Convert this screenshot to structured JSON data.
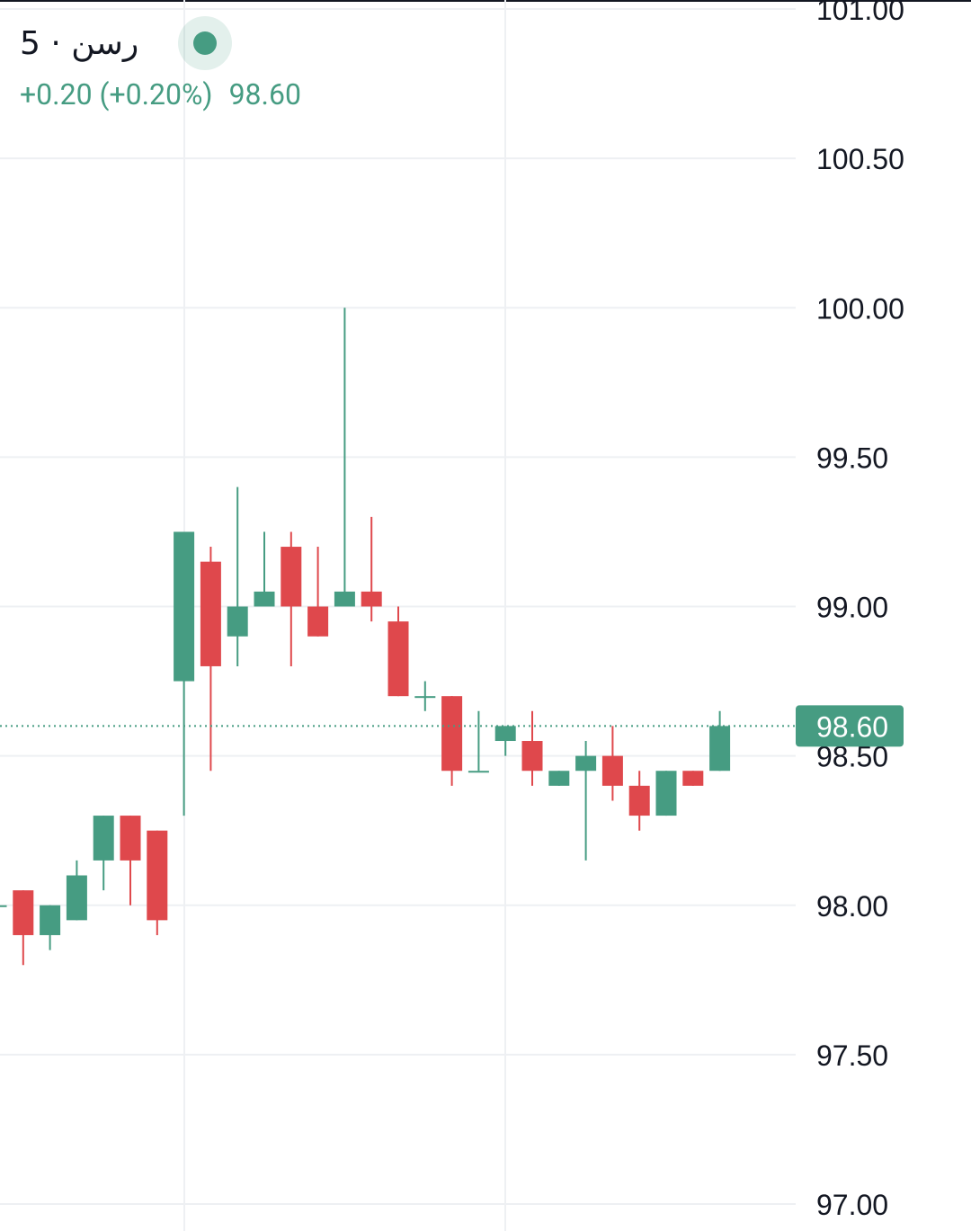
{
  "legend": {
    "symbol": "رسن",
    "separator": "·",
    "interval": "5",
    "change": "+0.20 (+0.20%)",
    "last_price": "98.60"
  },
  "colors": {
    "up": "#469c82",
    "down": "#df484c",
    "grid": "#eef0f3",
    "text": "#131722",
    "price_line": "#469c82"
  },
  "chart_data": {
    "type": "candlestick",
    "ylim": [
      97.0,
      101.0
    ],
    "y_ticks": [
      "97.00",
      "97.50",
      "98.00",
      "98.50",
      "99.00",
      "99.50",
      "100.00",
      "100.50",
      "101.00"
    ],
    "current_price": 98.6,
    "current_price_label": "98.60",
    "candles": [
      {
        "o": 98.0,
        "h": 98.0,
        "l": 98.0,
        "c": 98.0
      },
      {
        "o": 98.05,
        "h": 98.05,
        "l": 97.8,
        "c": 97.9
      },
      {
        "o": 97.9,
        "h": 98.0,
        "l": 97.85,
        "c": 98.0
      },
      {
        "o": 97.95,
        "h": 98.15,
        "l": 97.95,
        "c": 98.1
      },
      {
        "o": 98.15,
        "h": 98.3,
        "l": 98.05,
        "c": 98.3
      },
      {
        "o": 98.3,
        "h": 98.3,
        "l": 98.0,
        "c": 98.15
      },
      {
        "o": 98.25,
        "h": 98.25,
        "l": 97.9,
        "c": 97.95
      },
      {
        "o": 98.75,
        "h": 99.25,
        "l": 98.3,
        "c": 99.25
      },
      {
        "o": 99.15,
        "h": 99.2,
        "l": 98.45,
        "c": 98.8
      },
      {
        "o": 98.9,
        "h": 99.4,
        "l": 98.8,
        "c": 99.0
      },
      {
        "o": 99.0,
        "h": 99.25,
        "l": 99.0,
        "c": 99.05
      },
      {
        "o": 99.2,
        "h": 99.25,
        "l": 98.8,
        "c": 99.0
      },
      {
        "o": 99.0,
        "h": 99.2,
        "l": 98.9,
        "c": 98.9
      },
      {
        "o": 99.0,
        "h": 100.0,
        "l": 99.0,
        "c": 99.05
      },
      {
        "o": 99.05,
        "h": 99.3,
        "l": 98.95,
        "c": 99.0
      },
      {
        "o": 98.95,
        "h": 99.0,
        "l": 98.7,
        "c": 98.7
      },
      {
        "o": 98.7,
        "h": 98.75,
        "l": 98.65,
        "c": 98.7
      },
      {
        "o": 98.7,
        "h": 98.7,
        "l": 98.4,
        "c": 98.45
      },
      {
        "o": 98.45,
        "h": 98.65,
        "l": 98.45,
        "c": 98.45
      },
      {
        "o": 98.55,
        "h": 98.6,
        "l": 98.5,
        "c": 98.6
      },
      {
        "o": 98.55,
        "h": 98.65,
        "l": 98.4,
        "c": 98.45
      },
      {
        "o": 98.4,
        "h": 98.45,
        "l": 98.4,
        "c": 98.45
      },
      {
        "o": 98.45,
        "h": 98.55,
        "l": 98.15,
        "c": 98.5
      },
      {
        "o": 98.5,
        "h": 98.6,
        "l": 98.35,
        "c": 98.4
      },
      {
        "o": 98.4,
        "h": 98.45,
        "l": 98.25,
        "c": 98.3
      },
      {
        "o": 98.3,
        "h": 98.45,
        "l": 98.3,
        "c": 98.45
      },
      {
        "o": 98.45,
        "h": 98.45,
        "l": 98.4,
        "c": 98.4
      },
      {
        "o": 98.45,
        "h": 98.65,
        "l": 98.45,
        "c": 98.6
      }
    ]
  }
}
